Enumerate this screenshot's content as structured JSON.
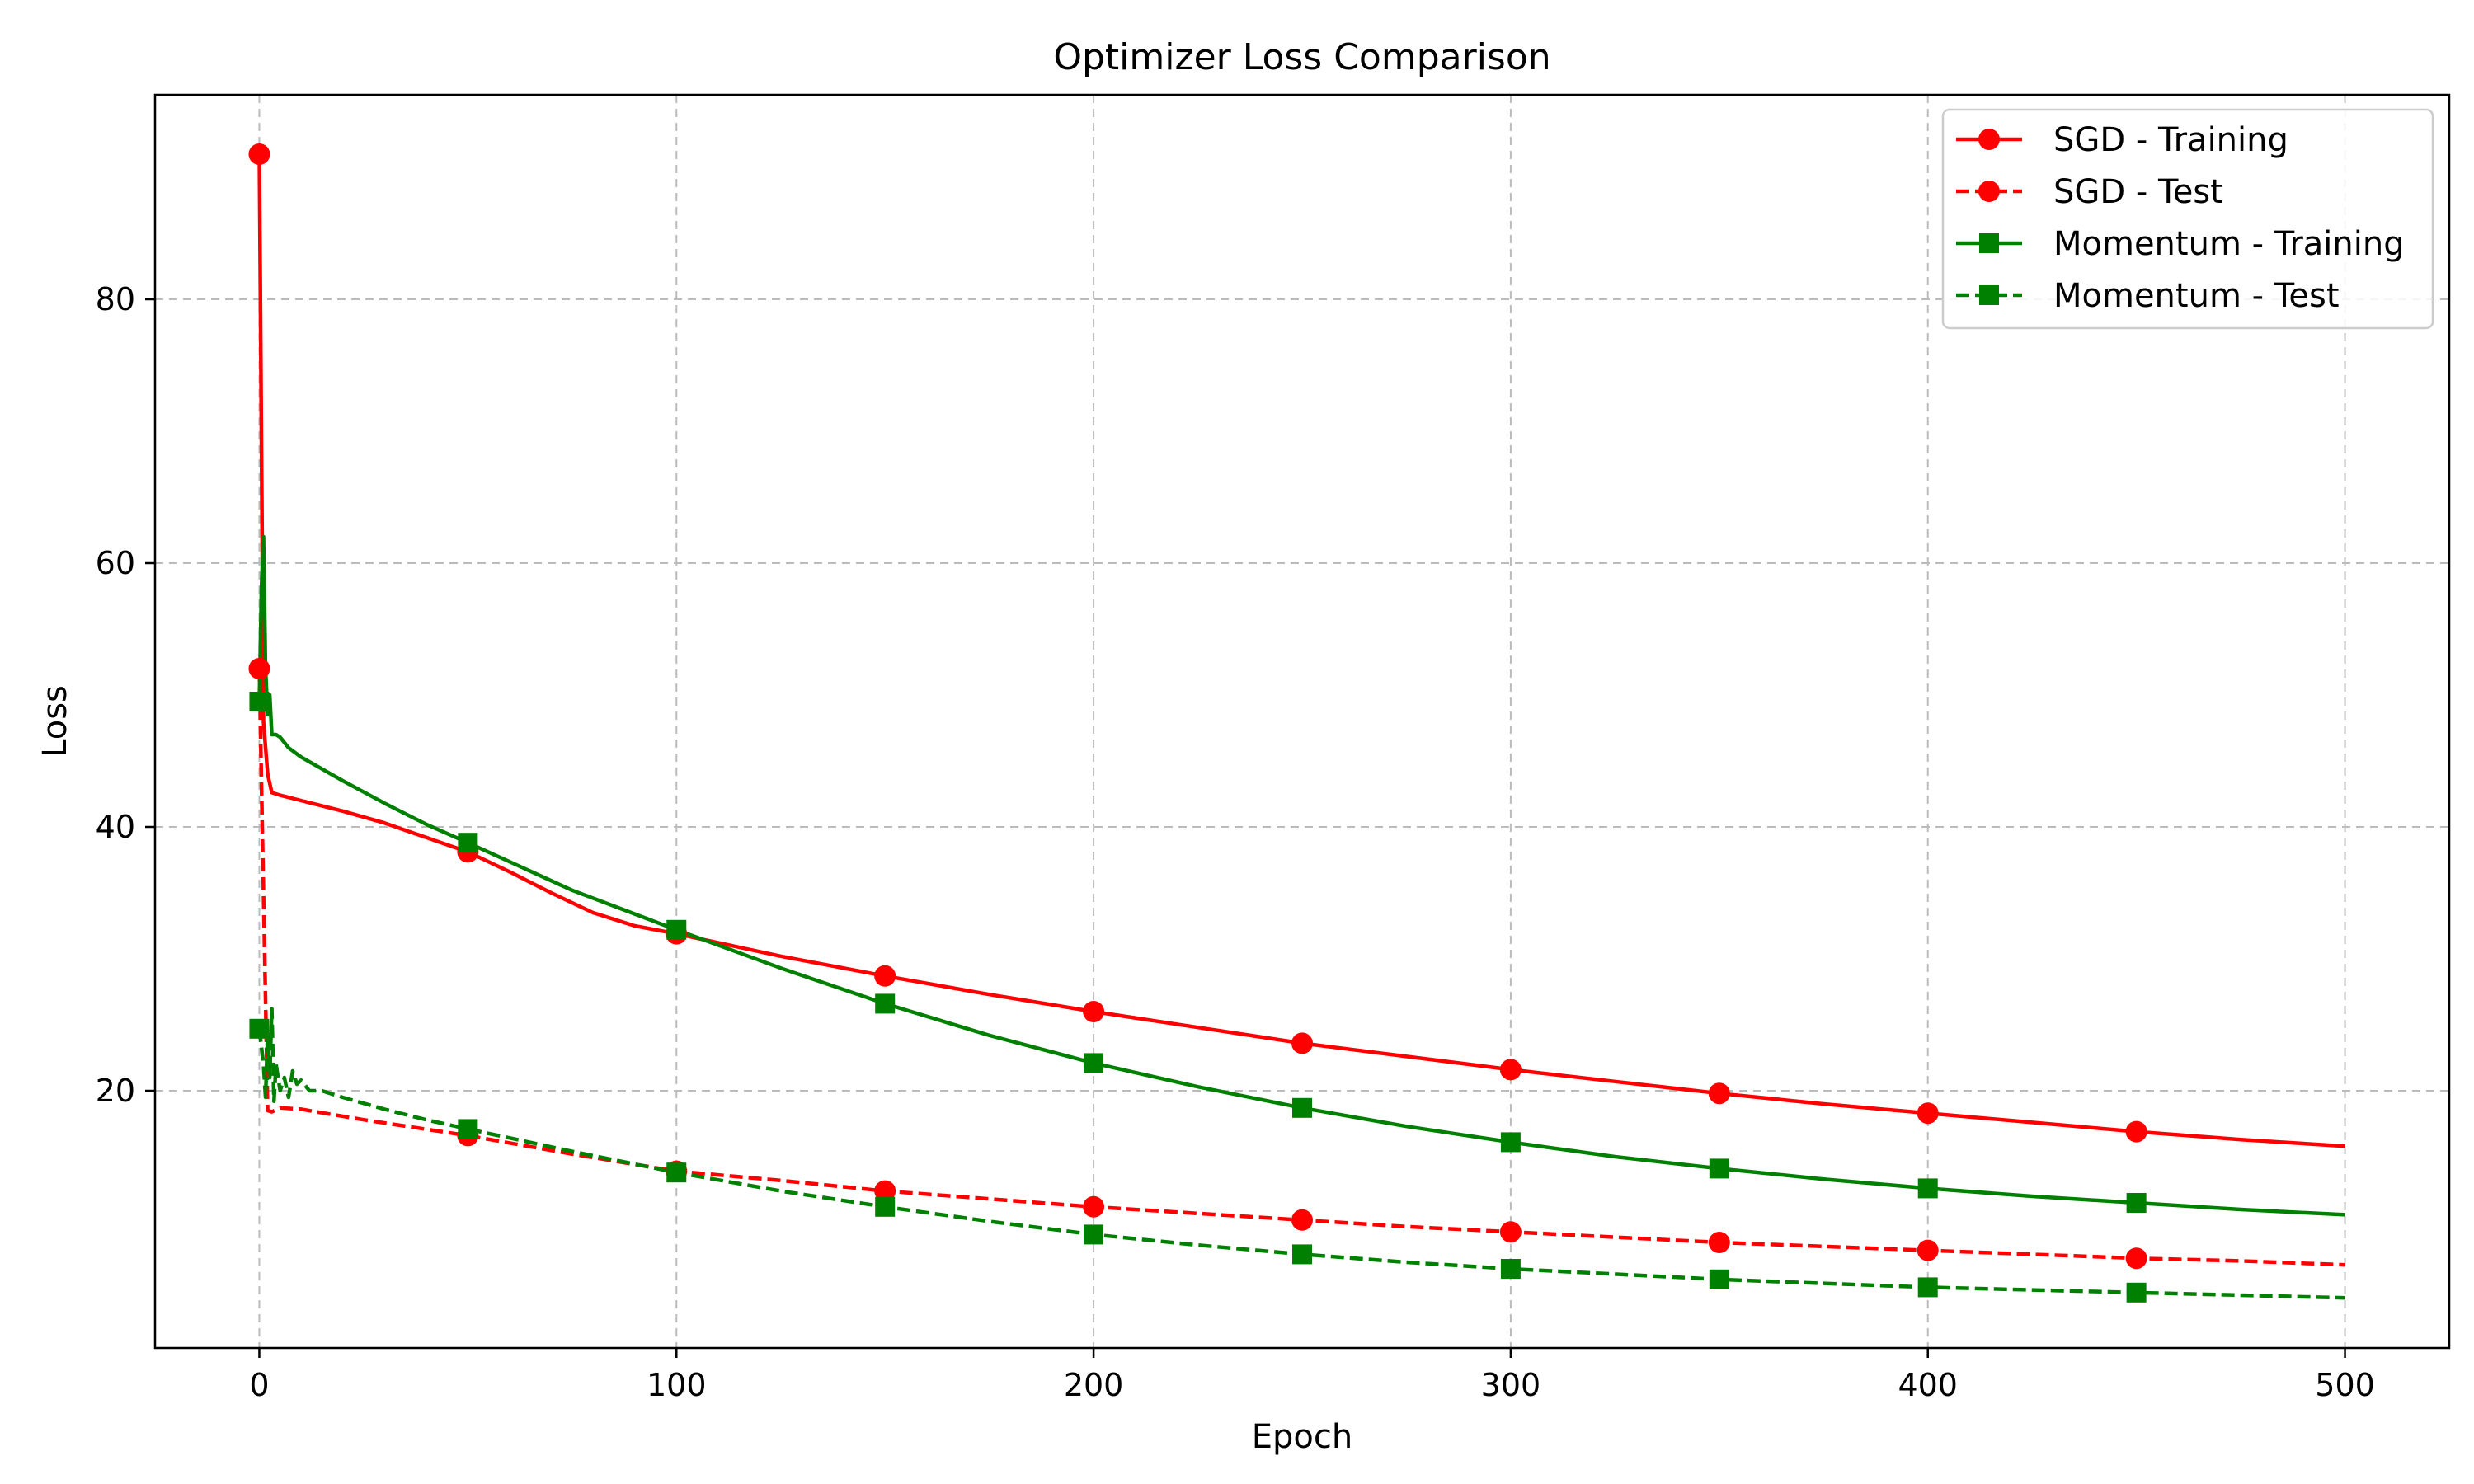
{
  "chart_data": {
    "type": "line",
    "title": "Optimizer Loss Comparison",
    "xlabel": "Epoch",
    "ylabel": "Loss",
    "xlim": [
      -25,
      525
    ],
    "ylim": [
      0.5,
      95.5
    ],
    "xticks": [
      0,
      100,
      200,
      300,
      400,
      500
    ],
    "yticks": [
      20,
      40,
      60,
      80
    ],
    "grid": true,
    "legend_position": "upper right",
    "series": [
      {
        "name": "SGD - Training",
        "color": "#ff0000",
        "linestyle": "solid",
        "marker": "circle",
        "x": [
          0,
          1,
          2,
          3,
          5,
          10,
          20,
          30,
          40,
          50,
          60,
          70,
          80,
          90,
          100,
          125,
          150,
          175,
          200,
          225,
          250,
          275,
          300,
          325,
          350,
          375,
          400,
          425,
          450,
          475,
          500
        ],
        "values": [
          91.0,
          48.0,
          44.0,
          42.6,
          42.4,
          42.0,
          41.2,
          40.3,
          39.2,
          38.1,
          36.6,
          35.0,
          33.5,
          32.5,
          31.9,
          30.2,
          28.7,
          27.3,
          26.0,
          24.8,
          23.6,
          22.6,
          21.6,
          20.7,
          19.8,
          19.0,
          18.3,
          17.6,
          16.9,
          16.3,
          15.8
        ],
        "marker_x": [
          0,
          50,
          100,
          150,
          200,
          250,
          300,
          350,
          400,
          450
        ]
      },
      {
        "name": "SGD - Test",
        "color": "#ff0000",
        "linestyle": "dashed",
        "marker": "circle",
        "x": [
          0,
          1,
          2,
          3,
          5,
          10,
          25,
          50,
          75,
          100,
          125,
          150,
          175,
          200,
          225,
          250,
          275,
          300,
          325,
          350,
          375,
          400,
          425,
          450,
          475,
          500
        ],
        "values": [
          52.0,
          35.0,
          18.5,
          18.4,
          18.7,
          18.6,
          17.8,
          16.6,
          15.2,
          13.9,
          13.2,
          12.4,
          11.8,
          11.2,
          10.7,
          10.2,
          9.7,
          9.3,
          8.9,
          8.5,
          8.2,
          7.9,
          7.6,
          7.3,
          7.1,
          6.8
        ],
        "marker_x": [
          0,
          50,
          100,
          150,
          200,
          250,
          300,
          350,
          400,
          450
        ]
      },
      {
        "name": "Momentum - Training",
        "color": "#008000",
        "linestyle": "solid",
        "marker": "square",
        "x": [
          0,
          0.5,
          1,
          1.5,
          2,
          2.5,
          3,
          4,
          5,
          7,
          10,
          20,
          30,
          40,
          50,
          75,
          100,
          125,
          150,
          175,
          200,
          225,
          250,
          275,
          300,
          325,
          350,
          375,
          400,
          425,
          450,
          475,
          500
        ],
        "values": [
          49.5,
          58.0,
          62.0,
          52.0,
          48.5,
          50.0,
          47.0,
          47.0,
          46.8,
          46.0,
          45.3,
          43.5,
          41.8,
          40.2,
          38.8,
          35.2,
          32.2,
          29.3,
          26.6,
          24.2,
          22.1,
          20.3,
          18.7,
          17.3,
          16.1,
          15.0,
          14.1,
          13.3,
          12.6,
          12.0,
          11.5,
          11.0,
          10.6
        ],
        "marker_x": [
          0,
          50,
          100,
          150,
          200,
          250,
          300,
          350,
          400,
          450
        ]
      },
      {
        "name": "Momentum - Test",
        "color": "#008000",
        "linestyle": "dashed",
        "marker": "square",
        "x": [
          0,
          1,
          1.5,
          2,
          2.5,
          3,
          3.5,
          4,
          5,
          6,
          7,
          8,
          9,
          10,
          12,
          15,
          20,
          30,
          40,
          50,
          75,
          100,
          125,
          150,
          175,
          200,
          225,
          250,
          275,
          300,
          325,
          350,
          375,
          400,
          425,
          450,
          475,
          500
        ],
        "values": [
          24.7,
          22.0,
          19.5,
          24.5,
          21.0,
          26.2,
          19.2,
          22.0,
          20.0,
          21.0,
          19.5,
          21.5,
          20.5,
          20.8,
          20.0,
          20.0,
          19.5,
          18.6,
          17.8,
          17.1,
          15.4,
          13.8,
          12.4,
          11.2,
          10.1,
          9.1,
          8.3,
          7.6,
          7.0,
          6.5,
          6.1,
          5.7,
          5.4,
          5.1,
          4.9,
          4.7,
          4.5,
          4.3
        ],
        "marker_x": [
          0,
          50,
          100,
          150,
          200,
          250,
          300,
          350,
          400,
          450
        ]
      }
    ]
  }
}
